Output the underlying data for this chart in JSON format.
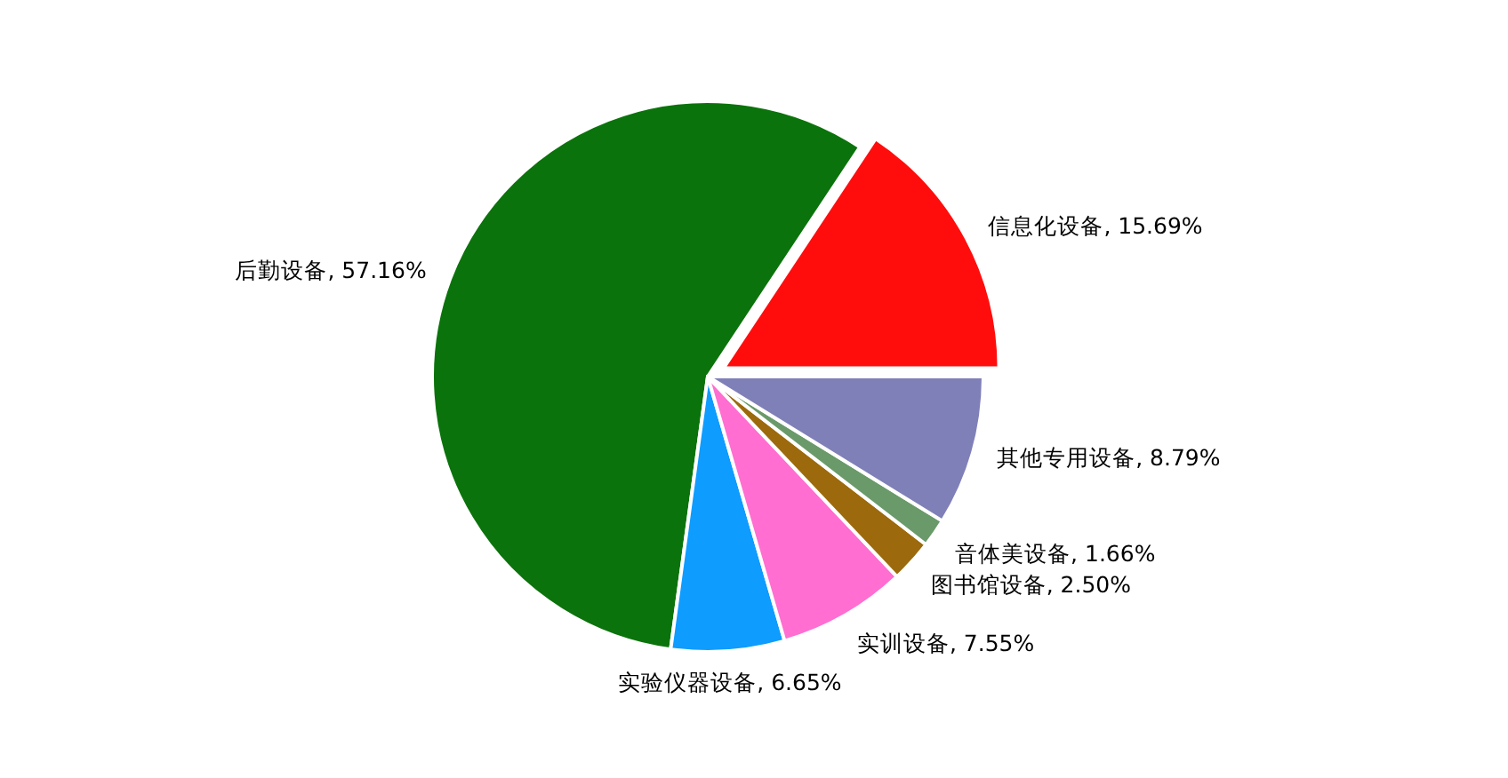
{
  "chart_data": {
    "type": "pie",
    "categories": [
      "信息化设备",
      "后勤设备",
      "实验仪器设备",
      "实训设备",
      "图书馆设备",
      "音体美设备",
      "其他专用设备"
    ],
    "values": [
      15.69,
      57.16,
      6.65,
      7.55,
      2.5,
      1.66,
      8.79
    ],
    "value_labels": [
      "15.69%",
      "57.16%",
      "6.65%",
      "7.55%",
      "2.50%",
      "1.66%",
      "8.79%"
    ],
    "colors": [
      "#ff0d0d",
      "#0b730b",
      "#0e9cff",
      "#ff6ed0",
      "#9c6a0c",
      "#6a9a6a",
      "#8080b8"
    ]
  }
}
